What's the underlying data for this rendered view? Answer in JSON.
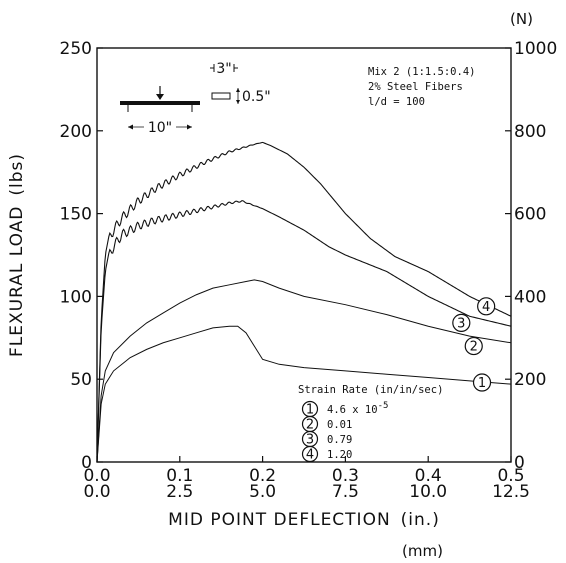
{
  "chart_data": {
    "type": "line",
    "ylabel": "FLEXURAL LOAD",
    "ylabel_unit": "(lbs)",
    "y2_unit": "(N)",
    "xlabel": "MID POINT DEFLECTION",
    "xlabel_unit": "(in.)",
    "x2_unit": "(mm)",
    "xlim": [
      0,
      0.5
    ],
    "ylim": [
      0,
      250
    ],
    "y2lim": [
      0,
      1000
    ],
    "x_ticks": [
      "0.0",
      "0.1",
      "0.2",
      "0.3",
      "0.4",
      "0.5"
    ],
    "x2_ticks": [
      "0.0",
      "2.5",
      "5.0",
      "7.5",
      "10.0",
      "12.5"
    ],
    "y_ticks": [
      "0",
      "50",
      "100",
      "150",
      "200",
      "250"
    ],
    "y2_ticks": [
      "0",
      "200",
      "400",
      "600",
      "800",
      "1000"
    ],
    "info_lines": [
      "Mix 2 (1:1.5:0.4)",
      "2% Steel Fibers",
      "l/d = 100"
    ],
    "beam_sketch": {
      "span": "10\"",
      "width": "3\"",
      "depth": "0.5\""
    },
    "legend_title": "Strain Rate (in/in/sec)",
    "legend_entries": [
      {
        "marker": "1",
        "label": "4.6 x 10",
        "exp": "-5"
      },
      {
        "marker": "2",
        "label": "0.01",
        "exp": ""
      },
      {
        "marker": "3",
        "label": "0.79",
        "exp": ""
      },
      {
        "marker": "4",
        "label": "1.20",
        "exp": ""
      }
    ],
    "series": [
      {
        "marker": "1",
        "points": [
          [
            0,
            0
          ],
          [
            0.005,
            35
          ],
          [
            0.01,
            47
          ],
          [
            0.02,
            55
          ],
          [
            0.04,
            63
          ],
          [
            0.06,
            68
          ],
          [
            0.08,
            72
          ],
          [
            0.1,
            75
          ],
          [
            0.12,
            78
          ],
          [
            0.14,
            81
          ],
          [
            0.16,
            82
          ],
          [
            0.17,
            82
          ],
          [
            0.18,
            78
          ],
          [
            0.19,
            70
          ],
          [
            0.2,
            62
          ],
          [
            0.22,
            59
          ],
          [
            0.25,
            57
          ],
          [
            0.3,
            55
          ],
          [
            0.35,
            53
          ],
          [
            0.4,
            51
          ],
          [
            0.45,
            49
          ],
          [
            0.5,
            47
          ]
        ]
      },
      {
        "marker": "2",
        "points": [
          [
            0,
            0
          ],
          [
            0.005,
            40
          ],
          [
            0.01,
            55
          ],
          [
            0.02,
            66
          ],
          [
            0.04,
            76
          ],
          [
            0.06,
            84
          ],
          [
            0.08,
            90
          ],
          [
            0.1,
            96
          ],
          [
            0.12,
            101
          ],
          [
            0.14,
            105
          ],
          [
            0.16,
            107
          ],
          [
            0.18,
            109
          ],
          [
            0.19,
            110
          ],
          [
            0.2,
            109
          ],
          [
            0.22,
            105
          ],
          [
            0.25,
            100
          ],
          [
            0.3,
            95
          ],
          [
            0.35,
            89
          ],
          [
            0.4,
            82
          ],
          [
            0.45,
            76
          ],
          [
            0.5,
            72
          ]
        ]
      },
      {
        "marker": "3",
        "wavy": true,
        "points": [
          [
            0,
            0
          ],
          [
            0.005,
            80
          ],
          [
            0.01,
            115
          ],
          [
            0.015,
            128
          ],
          [
            0.02,
            133
          ],
          [
            0.03,
            140
          ],
          [
            0.05,
            145
          ],
          [
            0.07,
            148
          ],
          [
            0.1,
            151
          ],
          [
            0.13,
            154
          ],
          [
            0.16,
            157
          ],
          [
            0.175,
            158
          ],
          [
            0.19,
            155
          ],
          [
            0.2,
            153
          ],
          [
            0.22,
            148
          ],
          [
            0.25,
            140
          ],
          [
            0.28,
            130
          ],
          [
            0.3,
            125
          ],
          [
            0.35,
            115
          ],
          [
            0.4,
            100
          ],
          [
            0.45,
            88
          ],
          [
            0.5,
            82
          ]
        ]
      },
      {
        "marker": "4",
        "wavy": true,
        "points": [
          [
            0,
            0
          ],
          [
            0.005,
            85
          ],
          [
            0.01,
            125
          ],
          [
            0.015,
            138
          ],
          [
            0.02,
            143
          ],
          [
            0.03,
            150
          ],
          [
            0.05,
            160
          ],
          [
            0.07,
            167
          ],
          [
            0.1,
            175
          ],
          [
            0.13,
            182
          ],
          [
            0.16,
            188
          ],
          [
            0.19,
            192
          ],
          [
            0.2,
            193
          ],
          [
            0.21,
            191
          ],
          [
            0.23,
            186
          ],
          [
            0.25,
            178
          ],
          [
            0.27,
            168
          ],
          [
            0.3,
            150
          ],
          [
            0.33,
            135
          ],
          [
            0.36,
            124
          ],
          [
            0.4,
            115
          ],
          [
            0.45,
            100
          ],
          [
            0.5,
            88
          ]
        ]
      }
    ],
    "end_markers": [
      {
        "marker": "1",
        "x": 0.465,
        "y": 48
      },
      {
        "marker": "2",
        "x": 0.455,
        "y": 70
      },
      {
        "marker": "3",
        "x": 0.44,
        "y": 84
      },
      {
        "marker": "4",
        "x": 0.47,
        "y": 94
      }
    ]
  }
}
